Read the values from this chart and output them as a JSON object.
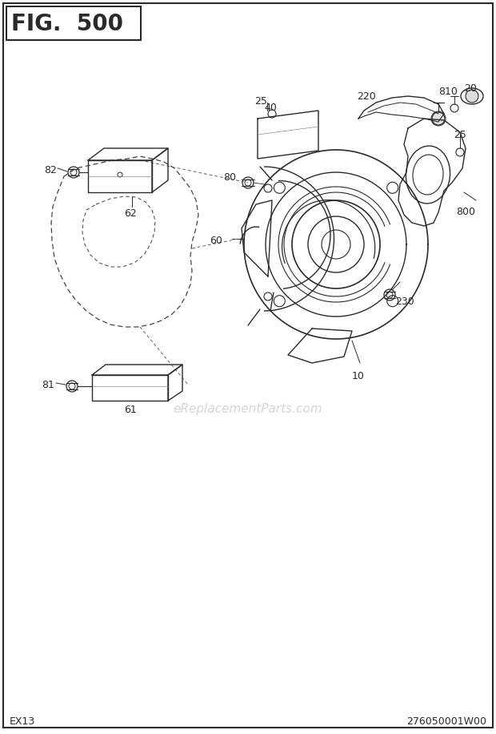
{
  "title": "FIG.  500",
  "bottom_left": "EX13",
  "bottom_right": "276050001W00",
  "watermark": "eReplacementParts.com",
  "bg_color": "#ffffff",
  "line_color": "#2a2a2a",
  "fig_width": 6.2,
  "fig_height": 9.16,
  "dpi": 100
}
